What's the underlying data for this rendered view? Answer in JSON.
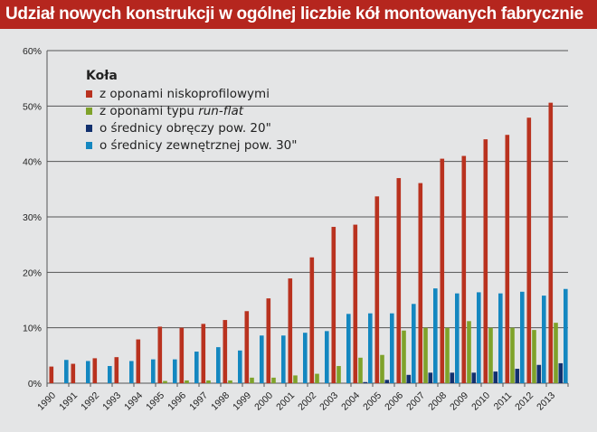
{
  "title": "Udział nowych konstrukcji w ogólnej liczbie kół montowanych fabrycznie",
  "chart_data": {
    "type": "bar",
    "title": "Udział nowych konstrukcji w ogólnej liczbie kół montowanych fabrycznie",
    "xlabel": "",
    "ylabel": "",
    "ylim": [
      0,
      60
    ],
    "yticks": [
      "0%",
      "10%",
      "20%",
      "30%",
      "40%",
      "50%",
      "60%"
    ],
    "grid": true,
    "legend_title": "Koła",
    "legend_position": "top-left",
    "categories": [
      "1990",
      "1991",
      "1992",
      "1993",
      "1994",
      "1995",
      "1996",
      "1997",
      "1998",
      "1999",
      "2000",
      "2001",
      "2002",
      "2003",
      "2004",
      "2005",
      "2006",
      "2007",
      "2008",
      "2009",
      "2010",
      "2011",
      "2012",
      "2013"
    ],
    "series": [
      {
        "name": "z oponami niskoprofilowymi",
        "color": "#b9321f",
        "values": [
          3.0,
          3.5,
          4.5,
          4.7,
          7.9,
          10.2,
          10.0,
          10.7,
          11.4,
          13.0,
          15.3,
          18.9,
          22.7,
          28.2,
          28.6,
          33.7,
          37.0,
          36.1,
          40.5,
          41.0,
          44.0,
          44.8,
          47.9,
          50.6
        ]
      },
      {
        "name": "z oponami typu run-flat",
        "name_prefix": "z oponami typu ",
        "name_italic": "run-flat",
        "color": "#7fa22a",
        "values": [
          0,
          0,
          0,
          0,
          0,
          0.4,
          0.5,
          0.5,
          0.5,
          1.0,
          1.0,
          1.4,
          1.7,
          3.1,
          4.6,
          5.1,
          9.5,
          10.0,
          10.0,
          11.2,
          10.0,
          10.0,
          9.6,
          10.9
        ]
      },
      {
        "name": "o średnicy obręczy pow. 20\"",
        "color": "#12306e",
        "values": [
          0,
          0,
          0,
          0,
          0,
          0,
          0,
          0,
          0,
          0,
          0,
          0,
          0,
          0,
          0.2,
          0.6,
          1.5,
          1.9,
          1.9,
          1.9,
          2.1,
          2.6,
          3.3,
          3.6
        ]
      },
      {
        "name": "o średnicy zewnętrznej pow. 30\"",
        "color": "#1487c0",
        "values": [
          4.2,
          4.0,
          3.1,
          4.0,
          4.3,
          4.3,
          5.7,
          6.5,
          5.9,
          8.6,
          8.6,
          9.1,
          9.4,
          12.5,
          12.6,
          12.6,
          14.3,
          17.1,
          16.2,
          16.4,
          16.2,
          16.5,
          15.8,
          17.0
        ]
      }
    ]
  }
}
